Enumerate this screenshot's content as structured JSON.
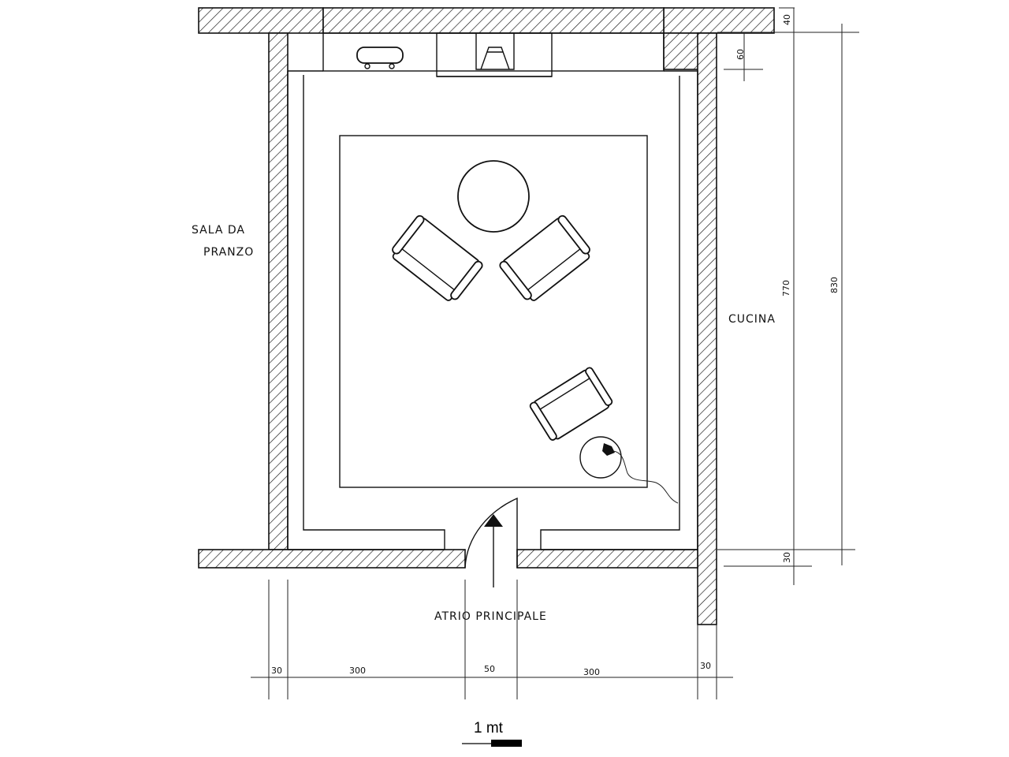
{
  "labels": {
    "sala_line1": "SALA DA",
    "sala_line2": "PRANZO",
    "cucina": "CUCINA",
    "atrio": "ATRIO PRINCIPALE"
  },
  "dimensions": {
    "top_wall": "40",
    "shelf_depth": "60",
    "inner_length": "770",
    "total_length": "830",
    "bottom_wall": "30",
    "left_wall_width": "30",
    "left_span": "300",
    "door_width": "50",
    "right_span": "300",
    "right_wall_width": "30"
  },
  "scale": {
    "label": "1 mt"
  },
  "colors": {
    "ink": "#111111",
    "paper": "#ffffff"
  }
}
